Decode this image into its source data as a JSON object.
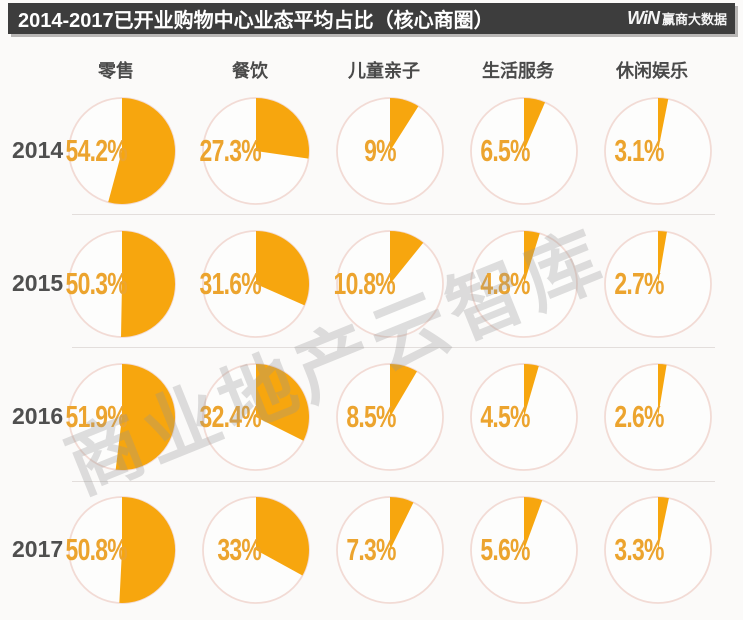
{
  "header": {
    "title": "2014-2017已开业购物中心业态平均占比（核心商圈）",
    "bar_color": "#3d3d3d",
    "logo_mark": "WiN",
    "logo_text": "赢商大数据"
  },
  "watermark": {
    "text": "商业地产云智库"
  },
  "chart_data": {
    "type": "pie",
    "layout": "4x5 grid of mini pie charts; rows are years, columns are business categories; each pie shows that category's average share",
    "title": "2014-2017已开业购物中心业态平均占比（核心商圈）",
    "categories": [
      "零售",
      "餐饮",
      "儿童亲子",
      "生活服务",
      "休闲娱乐"
    ],
    "rows": [
      {
        "year": "2014",
        "values": [
          54.2,
          27.3,
          9,
          6.5,
          3.1
        ],
        "labels": [
          "54.2%",
          "27.3%",
          "9%",
          "6.5%",
          "3.1%"
        ]
      },
      {
        "year": "2015",
        "values": [
          50.3,
          31.6,
          10.8,
          4.8,
          2.7
        ],
        "labels": [
          "50.3%",
          "31.6%",
          "10.8%",
          "4.8%",
          "2.7%"
        ]
      },
      {
        "year": "2016",
        "values": [
          51.9,
          32.4,
          8.5,
          4.5,
          2.6
        ],
        "labels": [
          "51.9%",
          "32.4%",
          "8.5%",
          "4.5%",
          "2.6%"
        ]
      },
      {
        "year": "2017",
        "values": [
          50.8,
          33,
          7.3,
          5.6,
          3.3
        ],
        "labels": [
          "50.8%",
          "33%",
          "7.3%",
          "5.6%",
          "3.3%"
        ]
      }
    ],
    "start_angle_deg": 0,
    "direction": "clockwise",
    "colors": {
      "slice": "#F7A60E",
      "label": "#ECA42E",
      "ring": "#F2DBD5",
      "pie_fill": "#FDFDFC",
      "year_text": "#4f4f4f",
      "category_text": "#4a4a4a"
    }
  }
}
